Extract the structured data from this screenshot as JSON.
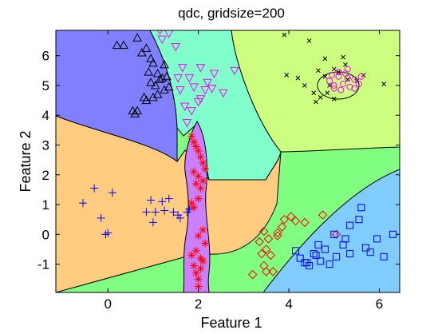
{
  "chart_data": {
    "type": "scatter",
    "title": "qdc, gridsize=200",
    "xlabel": "Feature 1",
    "ylabel": "Feature 2",
    "xlim": [
      -1.15,
      6.45
    ],
    "ylim": [
      -1.95,
      6.85
    ],
    "xticks": [
      "0",
      "2",
      "4",
      "6"
    ],
    "yticks": [
      "-1",
      "0",
      "1",
      "2",
      "3",
      "4",
      "5",
      "6"
    ],
    "grid": false,
    "legend": "none",
    "region_colors": {
      "blue_region": "#8080ff",
      "cyan_region": "#80ffcc",
      "yellow_region": "#ccff80",
      "orange_region": "#ffcc80",
      "violet_region": "#cc80ff",
      "green_region": "#80ff80",
      "skyblue_region": "#80ccff"
    },
    "series": [
      {
        "marker": "triangle-up",
        "color": "#000000",
        "x": [
          0.2,
          0.35,
          0.65,
          0.75,
          0.85,
          0.95,
          1.0,
          1.1,
          1.2,
          1.25,
          1.3,
          0.9,
          0.95,
          1.05,
          1.15,
          1.25,
          1.35,
          0.8,
          0.85,
          1.0,
          1.1,
          0.55,
          0.6,
          0.65
        ],
        "y": [
          6.35,
          6.35,
          6.6,
          6.1,
          6.25,
          5.9,
          5.75,
          5.4,
          5.25,
          5.7,
          5.3,
          5.45,
          5.1,
          5.0,
          5.2,
          4.85,
          4.95,
          4.6,
          4.5,
          4.6,
          4.7,
          4.15,
          4.05,
          4.15
        ]
      },
      {
        "marker": "triangle-down",
        "color": "#ff00ff",
        "x": [
          1.15,
          1.2,
          1.35,
          1.5,
          1.55,
          1.65,
          1.8,
          2.05,
          2.3,
          1.6,
          1.7,
          1.9,
          2.05,
          2.2,
          2.55,
          2.8,
          1.75,
          1.85,
          2.0,
          2.15,
          2.35
        ],
        "y": [
          6.85,
          6.55,
          6.75,
          6.3,
          5.25,
          5.6,
          5.25,
          4.55,
          4.9,
          4.85,
          4.3,
          4.95,
          5.6,
          5.1,
          4.75,
          5.5,
          3.75,
          4.15,
          4.45,
          4.85,
          5.4
        ]
      },
      {
        "marker": "x",
        "color": "#000000",
        "x": [
          3.9,
          4.45,
          4.8,
          5.25,
          5.65,
          6.1,
          3.95,
          4.2,
          4.35,
          4.65,
          4.8,
          4.9,
          5.0,
          5.1,
          5.3,
          5.5,
          5.2,
          4.55,
          4.7,
          4.85,
          5.0,
          4.6
        ],
        "y": [
          6.7,
          6.5,
          5.9,
          5.7,
          5.35,
          5.05,
          5.35,
          5.25,
          5.0,
          5.5,
          5.3,
          5.0,
          5.55,
          5.45,
          5.2,
          5.15,
          5.95,
          4.75,
          4.6,
          4.75,
          4.55,
          4.45
        ]
      },
      {
        "marker": "circle",
        "color": "#ff00ff",
        "x": [
          4.9,
          5.0,
          5.1,
          5.2,
          5.3,
          5.45,
          5.55,
          5.0,
          5.1,
          5.25,
          5.35,
          4.95,
          5.15,
          5.3,
          5.45,
          5.6
        ],
        "y": [
          5.15,
          5.0,
          5.3,
          5.05,
          5.25,
          5.2,
          5.05,
          4.9,
          5.45,
          5.4,
          4.95,
          5.35,
          4.85,
          5.55,
          4.9,
          5.3
        ]
      },
      {
        "marker": "plus",
        "color": "#0000ff",
        "x": [
          -0.55,
          -0.3,
          -0.15,
          0.1,
          -0.05,
          0.0,
          0.85,
          1.05,
          1.2,
          1.35,
          1.45,
          1.55,
          1.6,
          1.75,
          1.8,
          0.95,
          1.25,
          1.0
        ],
        "y": [
          1.05,
          1.55,
          0.55,
          1.4,
          0.0,
          0.05,
          0.75,
          0.75,
          1.1,
          1.2,
          0.75,
          0.65,
          0.55,
          0.75,
          0.85,
          1.15,
          0.8,
          0.4
        ],
        "annotation_note": "visible plus markers"
      },
      {
        "marker": "star",
        "color": "#ff0000",
        "x": [
          1.85,
          1.9,
          1.95,
          2.0,
          2.05,
          2.1,
          2.15,
          1.9,
          2.0,
          2.1,
          1.95,
          2.05,
          2.0,
          1.85,
          1.9,
          2.0,
          2.1,
          1.95,
          2.05,
          1.9,
          1.95,
          2.0,
          2.05,
          2.1,
          1.85,
          2.0,
          2.15
        ],
        "y": [
          3.3,
          3.1,
          2.95,
          2.8,
          2.6,
          2.4,
          2.2,
          2.1,
          1.95,
          1.8,
          1.7,
          1.55,
          1.2,
          1.05,
          0.9,
          -0.05,
          0.15,
          -0.55,
          -0.8,
          -1.05,
          -1.3,
          -1.5,
          -1.15,
          -0.9,
          -0.7,
          -1.75,
          -0.3
        ]
      },
      {
        "marker": "diamond",
        "color": "#ff0000",
        "x": [
          3.35,
          3.5,
          3.6,
          3.45,
          3.65,
          3.75,
          3.85,
          3.9,
          4.05,
          3.2,
          3.45,
          3.55,
          3.4,
          4.15,
          4.35,
          4.75,
          5.05,
          3.5,
          3.75
        ],
        "y": [
          -0.25,
          -0.5,
          -0.7,
          -1.05,
          -1.25,
          0.05,
          0.25,
          0.5,
          0.6,
          -1.35,
          0.1,
          -0.15,
          -0.65,
          0.45,
          0.4,
          0.65,
          0.0,
          -1.25,
          -0.05
        ]
      },
      {
        "marker": "square",
        "color": "#0000ff",
        "x": [
          4.15,
          4.25,
          4.35,
          4.45,
          4.55,
          4.7,
          4.8,
          4.9,
          5.05,
          5.2,
          5.35,
          5.55,
          5.6,
          5.7,
          5.8,
          5.95,
          6.1,
          6.3,
          4.65,
          5.35,
          5.0,
          5.25,
          4.4,
          4.6
        ],
        "y": [
          -0.55,
          -0.8,
          -0.95,
          -1.05,
          -0.65,
          -0.9,
          -0.5,
          -1.0,
          -0.75,
          -0.35,
          -0.65,
          0.5,
          0.9,
          -0.45,
          -0.6,
          -0.15,
          -0.75,
          0.0,
          -0.35,
          0.3,
          0.0,
          -0.15,
          -0.95,
          -0.7
        ]
      }
    ]
  }
}
